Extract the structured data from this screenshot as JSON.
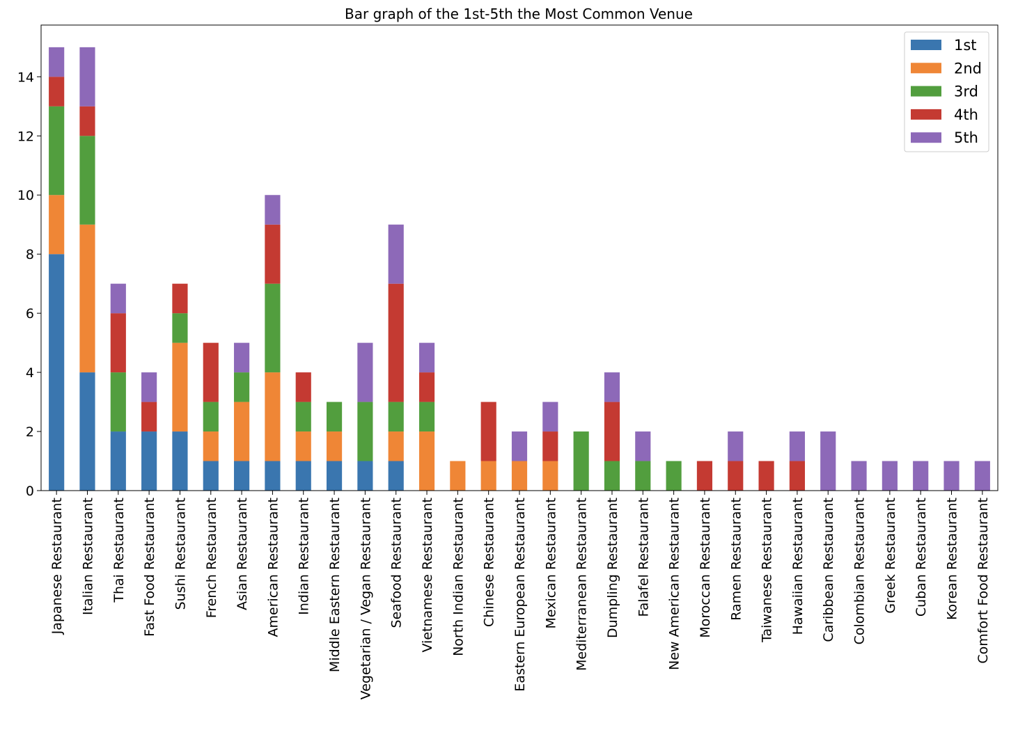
{
  "chart_data": {
    "type": "bar",
    "stacked": true,
    "title": "Bar graph of the 1st-5th the Most Common Venue",
    "xlabel": "",
    "ylabel": "",
    "ylim": [
      0,
      15.75
    ],
    "yticks": [
      0,
      2,
      4,
      6,
      8,
      10,
      12,
      14
    ],
    "grid": false,
    "legend_position": "top-right",
    "categories": [
      "Japanese Restaurant",
      "Italian Restaurant",
      "Thai Restaurant",
      "Fast Food Restaurant",
      "Sushi Restaurant",
      "French Restaurant",
      "Asian Restaurant",
      "American Restaurant",
      "Indian Restaurant",
      "Middle Eastern Restaurant",
      "Vegetarian / Vegan Restaurant",
      "Seafood Restaurant",
      "Vietnamese Restaurant",
      "North Indian Restaurant",
      "Chinese Restaurant",
      "Eastern European Restaurant",
      "Mexican Restaurant",
      "Mediterranean Restaurant",
      "Dumpling Restaurant",
      "Falafel Restaurant",
      "New American Restaurant",
      "Moroccan Restaurant",
      "Ramen Restaurant",
      "Taiwanese Restaurant",
      "Hawaiian Restaurant",
      "Caribbean Restaurant",
      "Colombian Restaurant",
      "Greek Restaurant",
      "Cuban Restaurant",
      "Korean Restaurant",
      "Comfort Food Restaurant"
    ],
    "series": [
      {
        "name": "1st",
        "color": "#3a76af",
        "values": [
          8,
          4,
          2,
          2,
          2,
          1,
          1,
          1,
          1,
          1,
          1,
          1,
          0,
          0,
          0,
          0,
          0,
          0,
          0,
          0,
          0,
          0,
          0,
          0,
          0,
          0,
          0,
          0,
          0,
          0,
          0
        ]
      },
      {
        "name": "2nd",
        "color": "#ef8636",
        "values": [
          2,
          5,
          0,
          0,
          3,
          1,
          2,
          3,
          1,
          1,
          0,
          1,
          2,
          1,
          1,
          1,
          1,
          0,
          0,
          0,
          0,
          0,
          0,
          0,
          0,
          0,
          0,
          0,
          0,
          0,
          0
        ]
      },
      {
        "name": "3rd",
        "color": "#529e3e",
        "values": [
          3,
          3,
          2,
          0,
          1,
          1,
          1,
          3,
          1,
          1,
          2,
          1,
          1,
          0,
          0,
          0,
          0,
          2,
          1,
          1,
          1,
          0,
          0,
          0,
          0,
          0,
          0,
          0,
          0,
          0,
          0
        ]
      },
      {
        "name": "4th",
        "color": "#c43a32",
        "values": [
          1,
          1,
          2,
          1,
          1,
          2,
          0,
          2,
          1,
          0,
          0,
          4,
          1,
          0,
          2,
          0,
          1,
          0,
          2,
          0,
          0,
          1,
          1,
          1,
          1,
          0,
          0,
          0,
          0,
          0,
          0
        ]
      },
      {
        "name": "5th",
        "color": "#8d69b8",
        "values": [
          1,
          2,
          1,
          1,
          0,
          0,
          1,
          1,
          0,
          0,
          2,
          2,
          1,
          0,
          0,
          1,
          1,
          0,
          1,
          1,
          0,
          0,
          1,
          0,
          1,
          2,
          1,
          1,
          1,
          1,
          1
        ]
      }
    ]
  }
}
